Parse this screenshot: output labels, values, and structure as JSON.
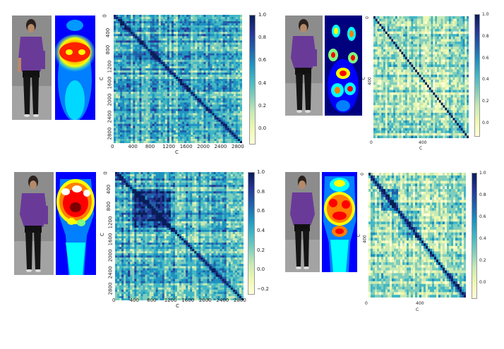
{
  "colormap": [
    "#ffffd9",
    "#edf8b1",
    "#c7e9b4",
    "#7fcdbb",
    "#41b6c4",
    "#1d91c0",
    "#225ea8",
    "#253494",
    "#081d58"
  ],
  "jet": [
    "#00007f",
    "#0000ff",
    "#007fff",
    "#00ffff",
    "#7fff7f",
    "#ffff00",
    "#ff7f00",
    "#ff0000",
    "#7f0000"
  ],
  "panels": [
    {
      "id": "top-left",
      "xlabel": "C",
      "ylabel": "C",
      "xticks": [
        "0",
        "400",
        "800",
        "1200",
        "1600",
        "2000",
        "2400",
        "2800"
      ],
      "yticks": [
        "0",
        "400",
        "800",
        "1200",
        "1600",
        "2000",
        "2400",
        "2800"
      ],
      "cbar_ticks": [
        "1.0",
        "0.8",
        "0.6",
        "0.4",
        "0.2",
        "0.0"
      ]
    },
    {
      "id": "top-right",
      "xlabel": "C",
      "ylabel": "C",
      "xticks": [
        "0",
        "400"
      ],
      "yticks": [
        "0",
        "400"
      ],
      "cbar_ticks": [
        "1.0",
        "0.8",
        "0.6",
        "0.4",
        "0.2",
        "0.0"
      ]
    },
    {
      "id": "bottom-left",
      "xlabel": "C",
      "ylabel": "C",
      "xticks": [
        "0",
        "400",
        "800",
        "1200",
        "1600",
        "2000",
        "2400",
        "2800"
      ],
      "yticks": [
        "0",
        "400",
        "800",
        "1200",
        "1600",
        "2000",
        "2400",
        "2800"
      ],
      "cbar_ticks": [
        "1.0",
        "0.8",
        "0.6",
        "0.4",
        "0.2",
        "0.0",
        "−0.2"
      ]
    },
    {
      "id": "bottom-right",
      "xlabel": "C",
      "ylabel": "C",
      "xticks": [
        "0",
        "400"
      ],
      "yticks": [
        "0",
        "400"
      ],
      "cbar_ticks": [
        "1.0",
        "0.8",
        "0.6",
        "0.4",
        "0.2",
        "0.0"
      ]
    }
  ]
}
